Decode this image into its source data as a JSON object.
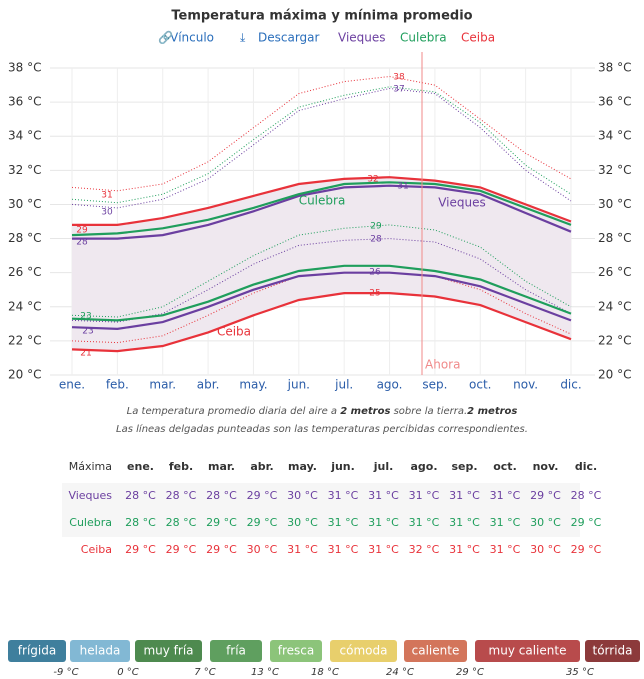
{
  "chart_data": {
    "type": "line",
    "title": "Temperatura máxima y mínima promedio",
    "links": [
      "Vínculo",
      "Descargar"
    ],
    "categories": [
      "ene.",
      "feb.",
      "mar.",
      "abr.",
      "may.",
      "jun.",
      "jul.",
      "ago.",
      "sep.",
      "oct.",
      "nov.",
      "dic."
    ],
    "ylim": [
      20,
      38
    ],
    "yticks": [
      {
        "value": 20,
        "label": "20 °C"
      },
      {
        "value": 22,
        "label": "22 °C"
      },
      {
        "value": 24,
        "label": "24 °C"
      },
      {
        "value": 26,
        "label": "26 °C"
      },
      {
        "value": 28,
        "label": "28 °C"
      },
      {
        "value": 30,
        "label": "30 °C"
      },
      {
        "value": 32,
        "label": "32 °C"
      },
      {
        "value": 34,
        "label": "34 °C"
      },
      {
        "value": 36,
        "label": "36 °C"
      },
      {
        "value": 38,
        "label": "38 °C"
      }
    ],
    "grid": true,
    "towns": [
      {
        "name": "Vieques",
        "color": "#6b3fa0",
        "high": [
          28,
          28,
          28.2,
          28.8,
          29.6,
          30.5,
          31,
          31.1,
          31,
          30.6,
          29.5,
          28.4
        ],
        "low": [
          22.8,
          22.7,
          23.1,
          24,
          25,
          25.8,
          26,
          26,
          25.8,
          25.2,
          24.2,
          23.2
        ],
        "feels_high": [
          30,
          29.8,
          30.3,
          31.5,
          33.5,
          35.5,
          36.2,
          36.8,
          36.5,
          34.5,
          32,
          30.2
        ],
        "feels_low": [
          23.2,
          23.1,
          23.6,
          25,
          26.5,
          27.6,
          27.9,
          28,
          27.8,
          26.8,
          25,
          23.6
        ]
      },
      {
        "name": "Culebra",
        "color": "#1f9e5c",
        "high": [
          28.2,
          28.3,
          28.6,
          29.1,
          29.8,
          30.6,
          31.2,
          31.3,
          31.2,
          30.8,
          29.8,
          28.8
        ],
        "low": [
          23.3,
          23.2,
          23.5,
          24.3,
          25.3,
          26.1,
          26.4,
          26.4,
          26.1,
          25.6,
          24.6,
          23.6
        ],
        "feels_high": [
          30.3,
          30.1,
          30.6,
          31.8,
          33.8,
          35.7,
          36.4,
          36.9,
          36.6,
          34.8,
          32.3,
          30.6
        ],
        "feels_low": [
          23.5,
          23.4,
          24,
          25.5,
          27,
          28.2,
          28.6,
          28.8,
          28.5,
          27.5,
          25.5,
          24
        ]
      },
      {
        "name": "Ceiba",
        "color": "#e8323a",
        "high": [
          28.8,
          28.8,
          29.2,
          29.8,
          30.5,
          31.2,
          31.5,
          31.6,
          31.4,
          31,
          30,
          29
        ],
        "low": [
          21.5,
          21.4,
          21.7,
          22.5,
          23.5,
          24.4,
          24.8,
          24.8,
          24.6,
          24.1,
          23.1,
          22.1
        ],
        "feels_high": [
          31,
          30.8,
          31.2,
          32.5,
          34.5,
          36.5,
          37.2,
          37.5,
          37,
          35,
          33,
          31.5
        ],
        "feels_low": [
          22,
          21.9,
          22.3,
          23.5,
          24.8,
          25.8,
          26,
          26,
          25.8,
          25,
          23.6,
          22.4
        ]
      }
    ],
    "annotations": [
      {
        "text": "38",
        "color": "#e8323a"
      },
      {
        "text": "37",
        "color": "#6b3fa0"
      },
      {
        "text": "32",
        "color": "#e8323a"
      },
      {
        "text": "31",
        "color": "#6b3fa0"
      },
      {
        "text": "31",
        "color": "#e8323a"
      },
      {
        "text": "30",
        "color": "#6b3fa0"
      },
      {
        "text": "29",
        "color": "#e8323a"
      },
      {
        "text": "28",
        "color": "#6b3fa0"
      },
      {
        "text": "29",
        "color": "#1f9e5c"
      },
      {
        "text": "28",
        "color": "#6b3fa0"
      },
      {
        "text": "26",
        "color": "#6b3fa0"
      },
      {
        "text": "25",
        "color": "#e8323a"
      },
      {
        "text": "23",
        "color": "#1f9e5c"
      },
      {
        "text": "23",
        "color": "#6b3fa0"
      },
      {
        "text": "21",
        "color": "#e8323a"
      },
      {
        "text": "Culebra",
        "color": "#1f9e5c"
      },
      {
        "text": "Vieques",
        "color": "#6b3fa0"
      },
      {
        "text": "Ceiba",
        "color": "#e8323a"
      }
    ],
    "now_label": "Ahora",
    "caption": [
      "La temperatura promedio diaria del aire a ",
      "2 metros",
      " sobre la tierra.",
      "2 metros",
      " Las líneas delgadas punteadas son las temperaturas percibidas correspondientes."
    ]
  },
  "table": {
    "header": [
      "Máxima",
      "ene.",
      "feb.",
      "mar.",
      "abr.",
      "may.",
      "jun.",
      "jul.",
      "ago.",
      "sep.",
      "oct.",
      "nov.",
      "dic."
    ],
    "rows": [
      [
        "Vieques",
        "28 °C",
        "28 °C",
        "28 °C",
        "29 °C",
        "30 °C",
        "31 °C",
        "31 °C",
        "31 °C",
        "31 °C",
        "31 °C",
        "29 °C",
        "28 °C"
      ],
      [
        "Culebra",
        "28 °C",
        "28 °C",
        "29 °C",
        "29 °C",
        "30 °C",
        "31 °C",
        "31 °C",
        "31 °C",
        "31 °C",
        "31 °C",
        "30 °C",
        "29 °C"
      ],
      [
        "Ceiba",
        "29 °C",
        "29 °C",
        "29 °C",
        "30 °C",
        "31 °C",
        "31 °C",
        "31 °C",
        "32 °C",
        "31 °C",
        "31 °C",
        "30 °C",
        "29 °C"
      ]
    ]
  },
  "scale": {
    "bands": [
      {
        "label": "frígida",
        "color": "#3f7f9d"
      },
      {
        "label": "helada",
        "color": "#82b8d4"
      },
      {
        "label": "muy fría",
        "color": "#4e8a4f"
      },
      {
        "label": "fría",
        "color": "#5f9f5f"
      },
      {
        "label": "fresca",
        "color": "#8cc47a"
      },
      {
        "label": "cómoda",
        "color": "#e8cf6c"
      },
      {
        "label": "caliente",
        "color": "#d3755b"
      },
      {
        "label": "muy caliente",
        "color": "#b84b4c"
      },
      {
        "label": "tórrida",
        "color": "#8c3a3b"
      }
    ],
    "thresholds": [
      "-9 °C",
      "0 °C",
      "7 °C",
      "13 °C",
      "18 °C",
      "24 °C",
      "29 °C",
      "35 °C"
    ]
  }
}
